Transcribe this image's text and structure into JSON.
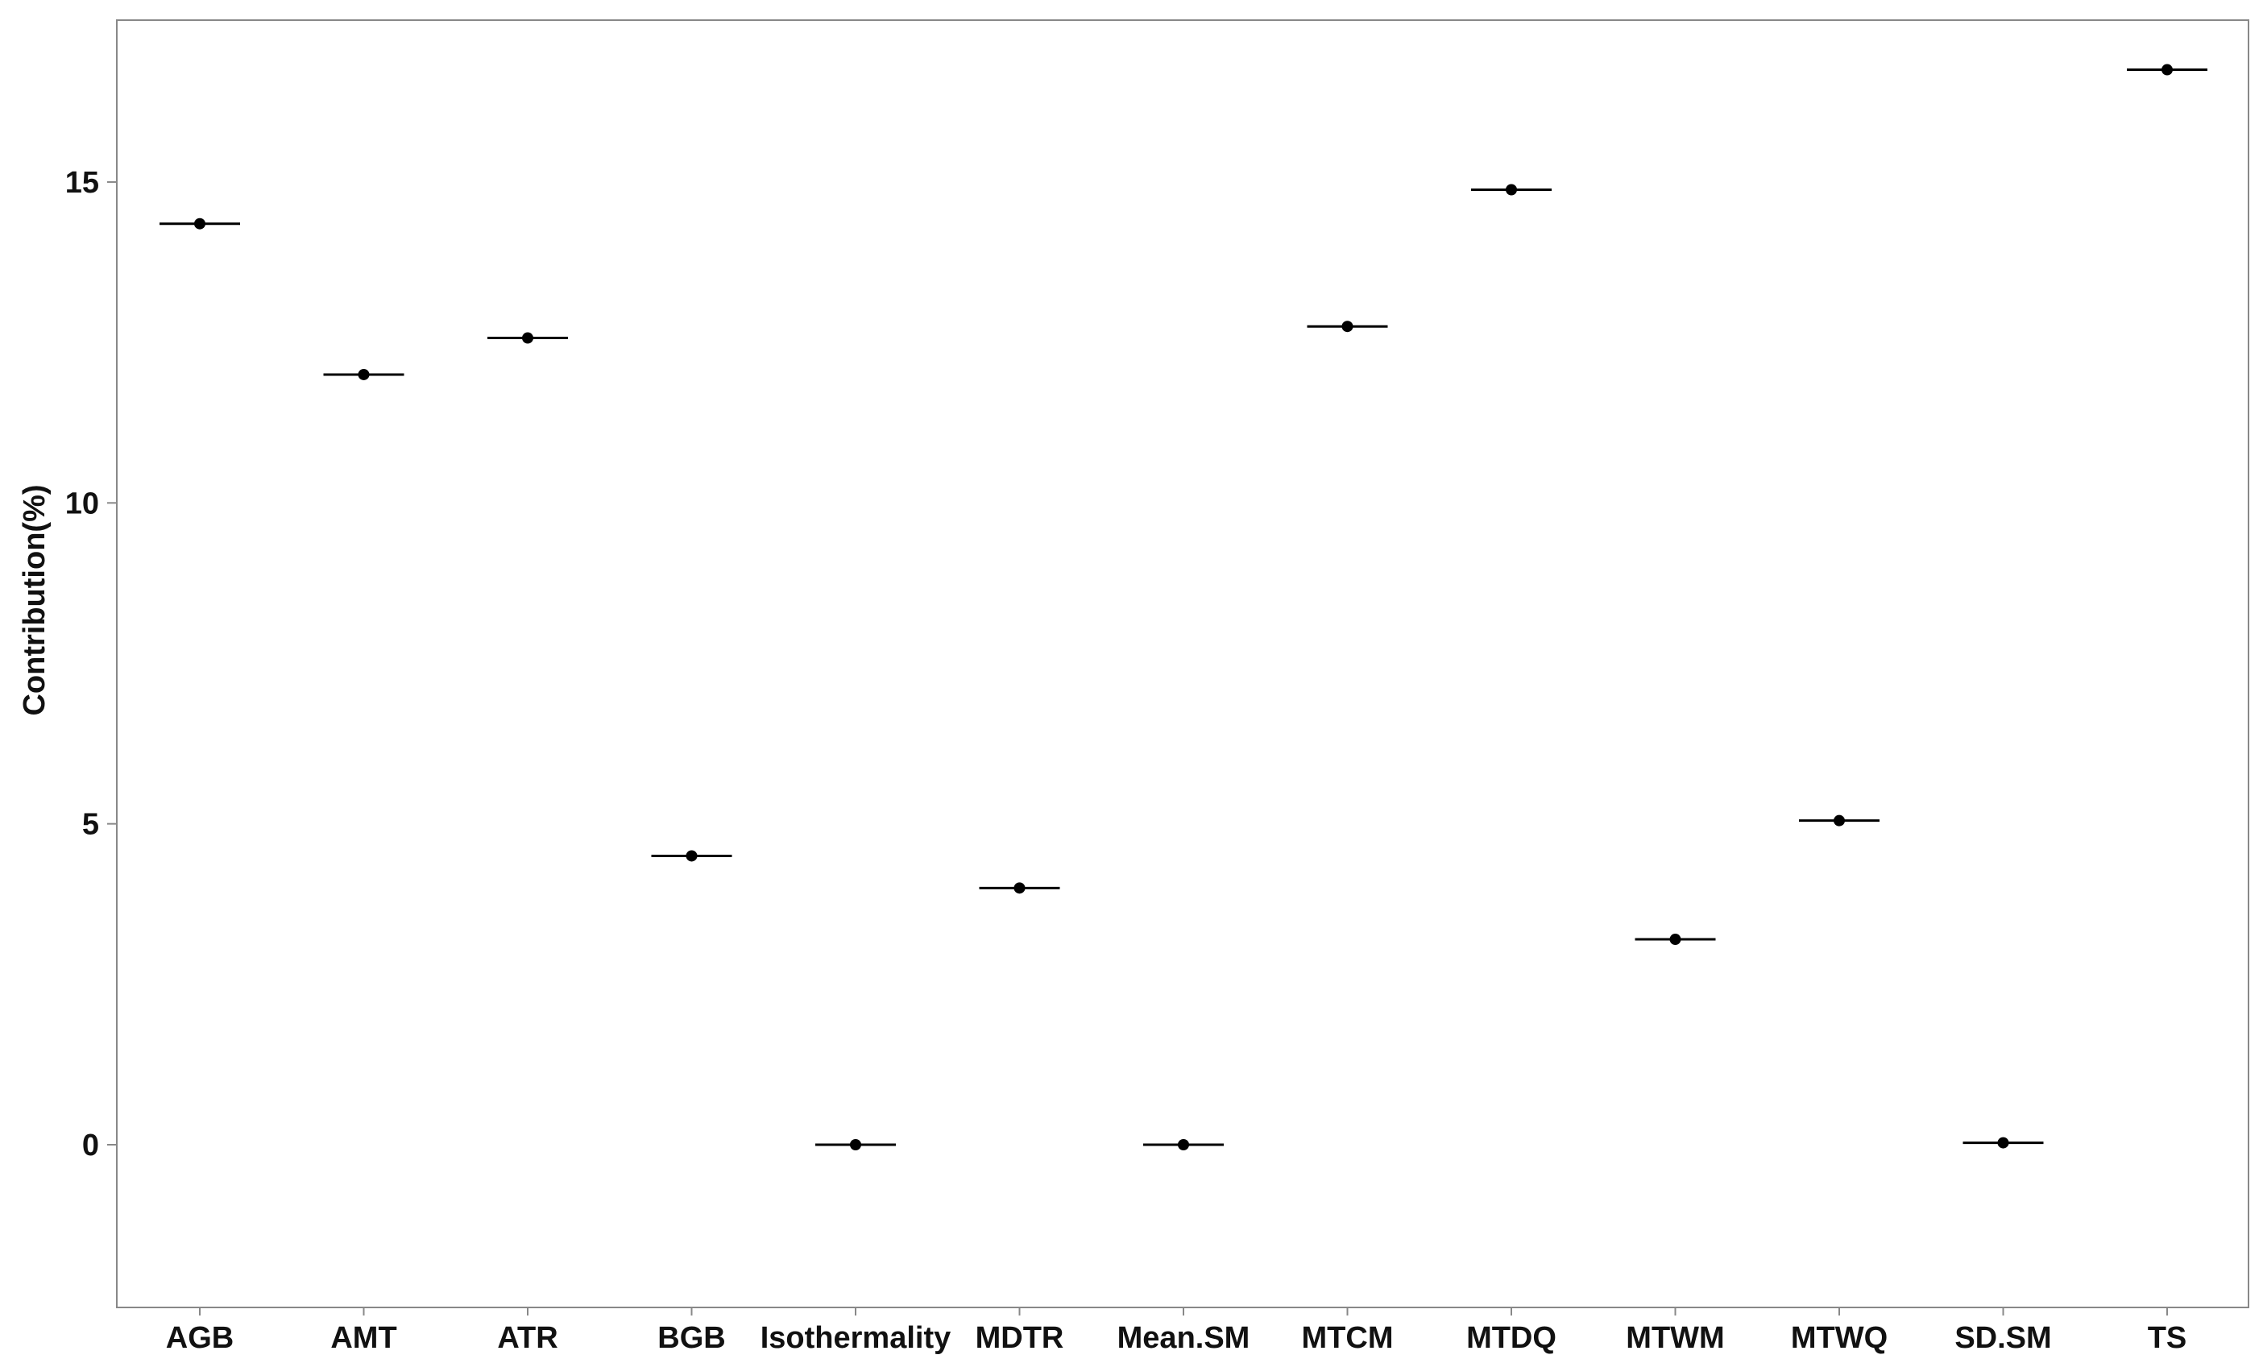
{
  "chart_data": {
    "type": "scatter",
    "title": "",
    "xlabel": "",
    "ylabel": "Contribution(%)",
    "ylim": [
      -2.5,
      17.3
    ],
    "yticks": [
      0,
      5,
      10,
      15
    ],
    "categories": [
      "AGB",
      "AMT",
      "ATR",
      "BGB",
      "Isothermality",
      "MDTR",
      "Mean.SM",
      "MTCM",
      "MTDQ",
      "MTWM",
      "MTWQ",
      "SD.SM",
      "TS"
    ],
    "values": [
      14.35,
      12.0,
      12.57,
      4.5,
      0.0,
      4.0,
      0.0,
      12.75,
      14.88,
      3.2,
      5.05,
      0.03,
      16.75
    ],
    "grid": false,
    "legend": "none",
    "colors": {
      "marker": "#000000",
      "axis": "#888888"
    }
  }
}
